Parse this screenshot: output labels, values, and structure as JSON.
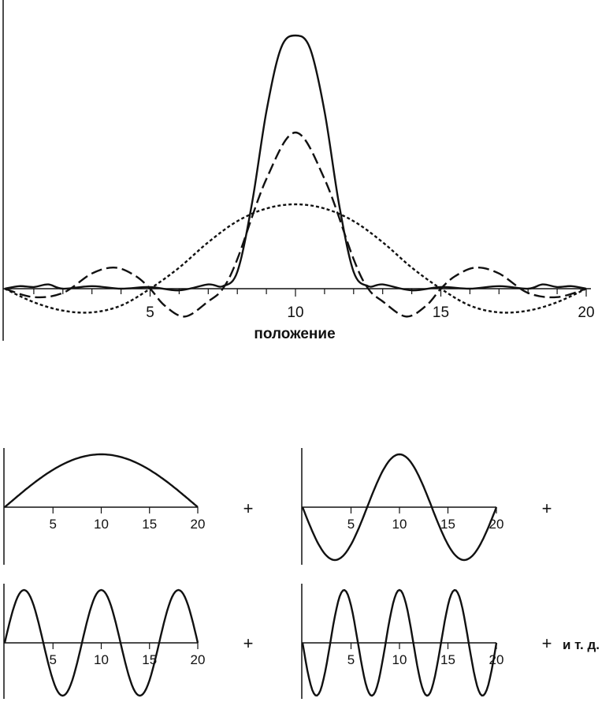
{
  "chart_data": [
    {
      "type": "line",
      "title": "",
      "xlabel": "положение",
      "ylabel": "",
      "xlim": [
        0,
        20
      ],
      "ylim": [
        -0.32,
        3.2
      ],
      "x_ticks": [
        5,
        10,
        15,
        20
      ],
      "x_minor_ticks": [
        1,
        2,
        3,
        4,
        6,
        7,
        8,
        9,
        11,
        12,
        13,
        14,
        16,
        17,
        18,
        19
      ],
      "grid": false,
      "legend": "none",
      "color": "#111111",
      "series": [
        {
          "style": "dotted",
          "x": [
            0,
            1,
            2,
            3,
            4,
            5,
            6,
            7,
            8,
            9,
            10,
            11,
            12,
            13,
            14,
            15,
            16,
            17,
            18,
            19,
            20
          ],
          "y": [
            0,
            -0.16,
            -0.26,
            -0.28,
            -0.2,
            0,
            0.25,
            0.55,
            0.8,
            0.95,
            1.0,
            0.95,
            0.8,
            0.55,
            0.25,
            0,
            -0.2,
            -0.28,
            -0.26,
            -0.16,
            0
          ]
        },
        {
          "style": "dashed",
          "x": [
            0,
            1,
            2,
            3,
            3.8,
            4.5,
            5,
            5.5,
            6.2,
            7,
            7.5,
            8,
            9,
            10,
            11,
            12,
            12.5,
            13,
            13.8,
            14.5,
            15,
            15.5,
            16.2,
            17,
            18,
            19,
            20
          ],
          "y": [
            0,
            -0.1,
            -0.05,
            0.18,
            0.25,
            0.15,
            0,
            -0.2,
            -0.33,
            -0.15,
            0,
            0.35,
            1.3,
            1.85,
            1.3,
            0.35,
            0,
            -0.15,
            -0.33,
            -0.2,
            0,
            0.15,
            0.25,
            0.18,
            -0.05,
            -0.1,
            0
          ]
        },
        {
          "style": "solid",
          "x": [
            0,
            0.5,
            1,
            1.5,
            2,
            3,
            4,
            5,
            6,
            7,
            7.5,
            8,
            8.5,
            9,
            9.5,
            10,
            10.5,
            11,
            11.5,
            12,
            12.5,
            13,
            14,
            15,
            16,
            17,
            18,
            18.5,
            19,
            19.5,
            20
          ],
          "y": [
            0,
            0.03,
            0.02,
            0.05,
            0.0,
            0.03,
            0.0,
            0.02,
            -0.02,
            0.05,
            0.03,
            0.2,
            1.0,
            2.1,
            2.85,
            3.0,
            2.85,
            2.1,
            1.0,
            0.2,
            0.03,
            0.05,
            -0.02,
            0.02,
            0.0,
            0.03,
            0.0,
            0.05,
            0.02,
            0.03,
            0
          ]
        }
      ]
    },
    {
      "type": "line",
      "xlim": [
        0,
        20
      ],
      "ylim": [
        -1,
        1
      ],
      "x_ticks": [
        5,
        10,
        15,
        20
      ],
      "function": "sin(pi*x/20)",
      "series": [
        {
          "x": [
            0,
            2.5,
            5,
            7.5,
            10,
            12.5,
            15,
            17.5,
            20
          ],
          "y": [
            0,
            0.38,
            0.71,
            0.92,
            1.0,
            0.92,
            0.71,
            0.38,
            0
          ]
        }
      ]
    },
    {
      "type": "line",
      "xlim": [
        0,
        20
      ],
      "ylim": [
        -1,
        1
      ],
      "x_ticks": [
        5,
        10,
        15,
        20
      ],
      "function": "-sin(3*pi*x/20)",
      "series": [
        {
          "x": [
            0,
            3.33,
            6.67,
            10,
            13.33,
            16.67,
            20
          ],
          "y": [
            0,
            -1,
            0,
            1,
            0,
            -1,
            0
          ]
        }
      ]
    },
    {
      "type": "line",
      "xlim": [
        0,
        20
      ],
      "ylim": [
        -1,
        1
      ],
      "x_ticks": [
        5,
        10,
        15,
        20
      ],
      "function": "sin(5*pi*x/20)",
      "series": [
        {
          "x": [
            0,
            2,
            4,
            6,
            8,
            10,
            12,
            14,
            16,
            18,
            20
          ],
          "y": [
            0,
            1,
            0,
            -1,
            0,
            1,
            0,
            -1,
            0,
            1,
            0
          ]
        }
      ]
    },
    {
      "type": "line",
      "xlim": [
        0,
        20
      ],
      "ylim": [
        -1,
        1
      ],
      "x_ticks": [
        5,
        10,
        15,
        20
      ],
      "function": "-sin(7*pi*x/20)",
      "series": [
        {
          "x": [
            0,
            1.43,
            2.86,
            4.29,
            5.71,
            7.14,
            8.57,
            10,
            11.43,
            12.86,
            14.29,
            15.71,
            17.14,
            18.57,
            20
          ],
          "y": [
            0,
            -1,
            0,
            1,
            0,
            -1,
            0,
            1,
            0,
            -1,
            0,
            1,
            0,
            -1,
            0
          ]
        }
      ]
    }
  ],
  "operators": [
    "+",
    "+",
    "+",
    "+"
  ],
  "etc_label": "и т. д."
}
